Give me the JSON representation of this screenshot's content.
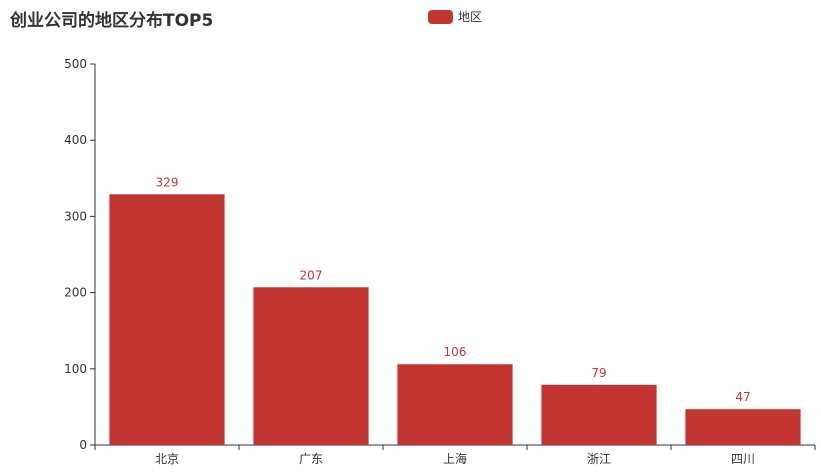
{
  "chart_data": {
    "type": "bar",
    "title": "创业公司的地区分布TOP5",
    "categories": [
      "北京",
      "广东",
      "上海",
      "浙江",
      "四川"
    ],
    "series": [
      {
        "name": "地区",
        "values": [
          329,
          207,
          106,
          79,
          47
        ],
        "color": "#c23531"
      }
    ],
    "ylim": [
      0,
      500
    ],
    "yticks": [
      0,
      100,
      200,
      300,
      400,
      500
    ],
    "xlabel": "",
    "ylabel": "",
    "grid": false,
    "legend_position": "top-center",
    "data_labels": true
  }
}
